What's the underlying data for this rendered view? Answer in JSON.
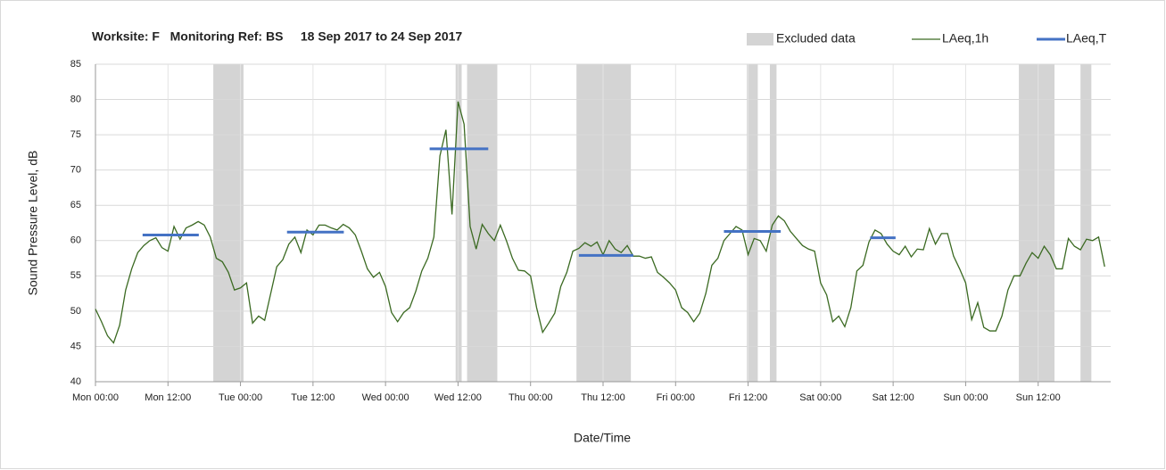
{
  "chart_data": {
    "type": "line",
    "title": "Worksite: F   Monitoring Ref: BS     18 Sep 2017 to 24 Sep 2017",
    "xlabel": "Date/Time",
    "ylabel": "Sound Pressure Level, dB",
    "xlim": [
      0,
      168
    ],
    "ylim": [
      40,
      85
    ],
    "yticks": [
      40,
      45,
      50,
      55,
      60,
      65,
      70,
      75,
      80,
      85
    ],
    "xticks": [
      {
        "value": 0,
        "label": "Mon 00:00"
      },
      {
        "value": 12,
        "label": "Mon 12:00"
      },
      {
        "value": 24,
        "label": "Tue 00:00"
      },
      {
        "value": 36,
        "label": "Tue 12:00"
      },
      {
        "value": 48,
        "label": "Wed 00:00"
      },
      {
        "value": 60,
        "label": "Wed 12:00"
      },
      {
        "value": 72,
        "label": "Thu 00:00"
      },
      {
        "value": 84,
        "label": "Thu 12:00"
      },
      {
        "value": 96,
        "label": "Fri 00:00"
      },
      {
        "value": 108,
        "label": "Fri 12:00"
      },
      {
        "value": 120,
        "label": "Sat 00:00"
      },
      {
        "value": 132,
        "label": "Sat 12:00"
      },
      {
        "value": 144,
        "label": "Sun 00:00"
      },
      {
        "value": 156,
        "label": "Sun 12:00"
      }
    ],
    "grid": true,
    "legend": "top-right",
    "excluded": {
      "name": "Excluded data",
      "color": "#d4d4d4",
      "ranges": [
        [
          19.5,
          24.5
        ],
        [
          59.6,
          60.6
        ],
        [
          61.5,
          66.5
        ],
        [
          79.6,
          88.6
        ],
        [
          107.8,
          109.6
        ],
        [
          111.6,
          112.7
        ],
        [
          152.8,
          158.7
        ],
        [
          163,
          164.8
        ]
      ]
    },
    "series": [
      {
        "name": "LAeq,1h",
        "color": "#3b6a22",
        "x": [
          0,
          1,
          2,
          3,
          4,
          5,
          6,
          7,
          8,
          9,
          10,
          11,
          12,
          13,
          14,
          15,
          16,
          17,
          18,
          19,
          20,
          21,
          22,
          23,
          24,
          25,
          26,
          27,
          28,
          29,
          30,
          31,
          32,
          33,
          34,
          35,
          36,
          37,
          38,
          39,
          40,
          41,
          42,
          43,
          44,
          45,
          46,
          47,
          48,
          49,
          50,
          51,
          52,
          53,
          54,
          55,
          56,
          57,
          58,
          59,
          60,
          61,
          62,
          63,
          64,
          65,
          66,
          67,
          68,
          69,
          70,
          71,
          72,
          73,
          74,
          75,
          76,
          77,
          78,
          79,
          80,
          81,
          82,
          83,
          84,
          85,
          86,
          87,
          88,
          89,
          90,
          91,
          92,
          93,
          94,
          95,
          96,
          97,
          98,
          99,
          100,
          101,
          102,
          103,
          104,
          105,
          106,
          107,
          108,
          109,
          110,
          111,
          112,
          113,
          114,
          115,
          116,
          117,
          118,
          119,
          120,
          121,
          122,
          123,
          124,
          125,
          126,
          127,
          128,
          129,
          130,
          131,
          132,
          133,
          134,
          135,
          136,
          137,
          138,
          139,
          140,
          141,
          142,
          143,
          144,
          145,
          146,
          147,
          148,
          149,
          150,
          151,
          152,
          153,
          154,
          155,
          156,
          157,
          158,
          159,
          160,
          161,
          162,
          163,
          164,
          165,
          166,
          167
        ],
        "values": [
          50.3,
          48.5,
          46.5,
          45.5,
          48,
          53,
          56,
          58.3,
          59.3,
          60,
          60.4,
          59,
          58.5,
          62,
          60.2,
          61.8,
          62.2,
          62.7,
          62.2,
          60.5,
          57.5,
          57,
          55.5,
          53,
          53.3,
          54,
          48.3,
          49.3,
          48.7,
          52.5,
          56.3,
          57.3,
          59.5,
          60.5,
          58.3,
          61.5,
          60.8,
          62.2,
          62.2,
          61.8,
          61.5,
          62.3,
          61.8,
          60.8,
          58.5,
          56,
          54.8,
          55.5,
          53.5,
          49.8,
          48.5,
          49.8,
          50.5,
          52.8,
          55.7,
          57.5,
          60.5,
          72,
          75.7,
          63.7,
          79.7,
          76.5,
          62,
          58.8,
          62.3,
          61,
          60,
          62.2,
          60,
          57.5,
          55.8,
          55.7,
          55,
          50.5,
          47,
          48.3,
          49.7,
          53.5,
          55.5,
          58.5,
          58.9,
          59.7,
          59.2,
          59.8,
          58,
          60,
          58.8,
          58.3,
          59.3,
          57.8,
          57.8,
          57.5,
          57.7,
          55.5,
          54.8,
          54,
          53,
          50.5,
          49.8,
          48.5,
          49.7,
          52.5,
          56.5,
          57.5,
          60,
          61,
          62,
          61.5,
          58,
          60.3,
          60,
          58.5,
          62.2,
          63.5,
          62.8,
          61.3,
          60.3,
          59.3,
          58.8,
          58.5,
          54,
          52.3,
          48.5,
          49.3,
          47.8,
          50.5,
          55.7,
          56.5,
          59.8,
          61.5,
          61,
          59.5,
          58.5,
          58,
          59.2,
          57.7,
          58.8,
          58.7,
          61.7,
          59.5,
          61,
          61,
          57.8,
          56,
          54,
          48.8,
          51.2,
          47.7,
          47.2,
          47.2,
          49.3,
          53,
          55,
          55,
          56.8,
          58.3,
          57.5,
          59.2,
          58,
          56,
          56,
          60.3,
          59.2,
          58.7,
          60.2,
          60,
          60.5,
          56.3
        ]
      },
      {
        "name": "LAeq,T",
        "color": "#4472c4",
        "x_start": [
          7.8,
          31.7,
          55.3,
          80,
          104,
          128.2
        ],
        "x_end": [
          17.1,
          41.1,
          65,
          89,
          113.4,
          132.4
        ],
        "values": [
          60.8,
          61.2,
          73,
          57.9,
          61.3,
          60.4
        ]
      }
    ]
  }
}
